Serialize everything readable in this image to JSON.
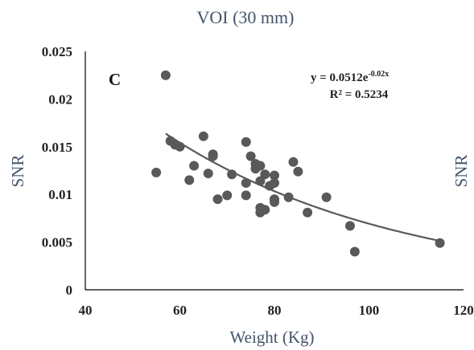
{
  "chart_data": {
    "type": "scatter",
    "title": "VOI (30 mm)",
    "xlabel": "Weight (Kg)",
    "ylabel": "SNR",
    "ylabel_right": "SNR",
    "panel_label": "C",
    "xlim": [
      40,
      120
    ],
    "ylim": [
      0,
      0.025
    ],
    "x_ticks": [
      "40",
      "60",
      "80",
      "100",
      "120"
    ],
    "y_ticks": [
      "0",
      "0.005",
      "0.01",
      "0.015",
      "0.02",
      "0.025"
    ],
    "grid": false,
    "legend": "none",
    "colors": {
      "points": "#595959",
      "trendline": "#595959",
      "text": "#44546a"
    },
    "trendline": {
      "type": "exponential",
      "a": 0.0512,
      "b": -0.02,
      "x_range": [
        57,
        115
      ],
      "equation_prefix": "y = 0.0512e",
      "equation_exponent": "-0.02x",
      "r_squared_text": "R² = 0.5234"
    },
    "points": [
      {
        "x": 55,
        "y": 0.0123
      },
      {
        "x": 57,
        "y": 0.0225
      },
      {
        "x": 58,
        "y": 0.0156
      },
      {
        "x": 59,
        "y": 0.0152
      },
      {
        "x": 60,
        "y": 0.015
      },
      {
        "x": 62,
        "y": 0.0115
      },
      {
        "x": 63,
        "y": 0.013
      },
      {
        "x": 65,
        "y": 0.0161
      },
      {
        "x": 66,
        "y": 0.0122
      },
      {
        "x": 67,
        "y": 0.0142
      },
      {
        "x": 67,
        "y": 0.014
      },
      {
        "x": 68,
        "y": 0.0095
      },
      {
        "x": 70,
        "y": 0.0099
      },
      {
        "x": 71,
        "y": 0.0121
      },
      {
        "x": 74,
        "y": 0.0155
      },
      {
        "x": 74,
        "y": 0.0112
      },
      {
        "x": 74,
        "y": 0.0099
      },
      {
        "x": 75,
        "y": 0.014
      },
      {
        "x": 76,
        "y": 0.0132
      },
      {
        "x": 76,
        "y": 0.0127
      },
      {
        "x": 77,
        "y": 0.013
      },
      {
        "x": 77,
        "y": 0.0114
      },
      {
        "x": 77,
        "y": 0.0086
      },
      {
        "x": 77,
        "y": 0.0081
      },
      {
        "x": 78,
        "y": 0.0121
      },
      {
        "x": 78,
        "y": 0.0084
      },
      {
        "x": 79,
        "y": 0.0109
      },
      {
        "x": 80,
        "y": 0.012
      },
      {
        "x": 80,
        "y": 0.0112
      },
      {
        "x": 80,
        "y": 0.0095
      },
      {
        "x": 80,
        "y": 0.0092
      },
      {
        "x": 83,
        "y": 0.0097
      },
      {
        "x": 84,
        "y": 0.0134
      },
      {
        "x": 85,
        "y": 0.0124
      },
      {
        "x": 87,
        "y": 0.0081
      },
      {
        "x": 91,
        "y": 0.0097
      },
      {
        "x": 96,
        "y": 0.0067
      },
      {
        "x": 97,
        "y": 0.004
      },
      {
        "x": 115,
        "y": 0.0049
      }
    ]
  }
}
